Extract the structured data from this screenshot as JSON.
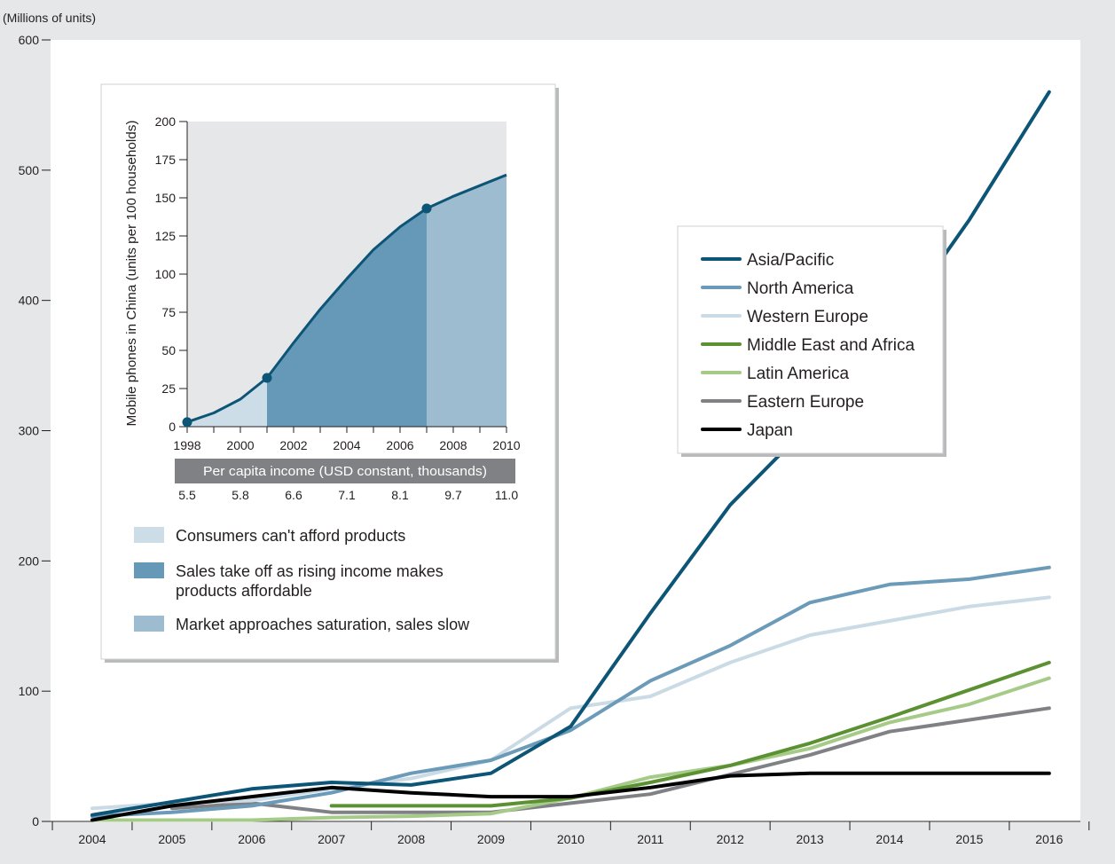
{
  "chart_data": [
    {
      "type": "line",
      "title": "",
      "ylabel": "(Millions of units)",
      "xlabel": "",
      "ylim": [
        0,
        600
      ],
      "yticks": [
        0,
        100,
        200,
        300,
        400,
        500,
        600
      ],
      "x": [
        "2004",
        "2005",
        "2006",
        "2007",
        "2008",
        "2009",
        "2010",
        "2011",
        "2012",
        "2013",
        "2014",
        "2015",
        "2016"
      ],
      "legend_position": "right",
      "series": [
        {
          "name": "Asia/Pacific",
          "color": "#0d5576",
          "values": [
            5,
            15,
            25,
            30,
            28,
            37,
            73,
            160,
            243,
            305,
            375,
            462,
            560
          ]
        },
        {
          "name": "North America",
          "color": "#6b9bb8",
          "values": [
            4,
            7,
            12,
            22,
            37,
            47,
            70,
            108,
            135,
            168,
            182,
            186,
            195
          ]
        },
        {
          "name": "Western Europe",
          "color": "#cadbe6",
          "values": [
            10,
            14,
            16,
            25,
            33,
            47,
            87,
            96,
            122,
            143,
            154,
            165,
            172
          ]
        },
        {
          "name": "Middle East and Africa",
          "color": "#5b9132",
          "values": [
            null,
            null,
            null,
            12,
            12,
            12,
            18,
            30,
            43,
            60,
            80,
            101,
            122
          ]
        },
        {
          "name": "Latin America",
          "color": "#a6cb88",
          "values": [
            1,
            1,
            1,
            3,
            4,
            6,
            18,
            34,
            43,
            56,
            76,
            90,
            110
          ]
        },
        {
          "name": "Eastern Europe",
          "color": "#808184",
          "values": [
            null,
            10,
            14,
            7,
            7,
            7,
            14,
            21,
            36,
            51,
            69,
            78,
            87
          ]
        },
        {
          "name": "Japan",
          "color": "#000000",
          "values": [
            1,
            12,
            19,
            26,
            22,
            19,
            19,
            26,
            35,
            37,
            37,
            37,
            37
          ]
        }
      ]
    },
    {
      "type": "area",
      "ylabel": "Mobile phones in China (units per 100 households)",
      "xlabel": "Per capita income (USD constant, thousands)",
      "xlim": [
        1998,
        2010
      ],
      "ylim": [
        0,
        200
      ],
      "xticks": [
        "1998",
        "2000",
        "2002",
        "2004",
        "2006",
        "2008",
        "2010"
      ],
      "yticks": [
        0,
        25,
        50,
        75,
        100,
        125,
        150,
        175,
        200
      ],
      "income_labels": [
        "5.5",
        "5.8",
        "6.6",
        "7.1",
        "8.1",
        "9.7",
        "11.0"
      ],
      "x": [
        1998,
        1999,
        2000,
        2001,
        2002,
        2003,
        2004,
        2005,
        2006,
        2007,
        2008,
        2009,
        2010
      ],
      "values": [
        3,
        9,
        18,
        32,
        55,
        77,
        97,
        116,
        131,
        143,
        151,
        158,
        165
      ],
      "highlight_points": [
        1998,
        2001,
        2007
      ],
      "phase_boundaries": [
        2001,
        2007
      ],
      "phases": [
        {
          "label": "Consumers can't afford products",
          "color": "#ccdde8"
        },
        {
          "label": "Sales take off as rising income makes products affordable",
          "color": "#6699b8"
        },
        {
          "label": "Market approaches saturation, sales slow",
          "color": "#9dbccf"
        }
      ],
      "accent_color": "#0d5576"
    }
  ]
}
